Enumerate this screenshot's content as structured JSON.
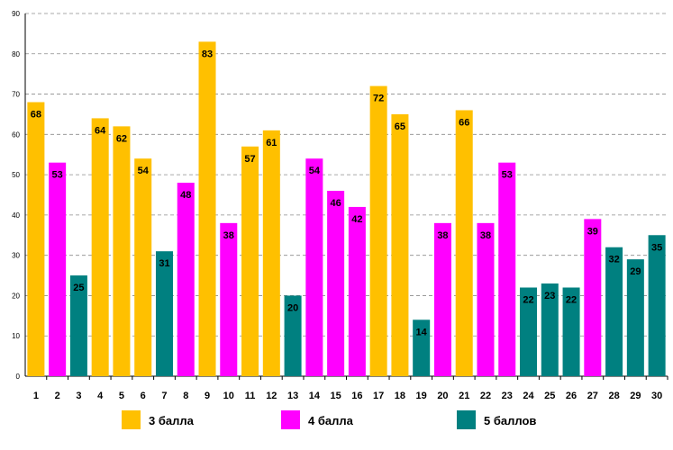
{
  "chart_data": {
    "type": "bar",
    "title": "",
    "xlabel": "",
    "ylabel": "",
    "ylim": [
      0,
      90
    ],
    "yticks": [
      0,
      10,
      20,
      30,
      40,
      50,
      60,
      70,
      80,
      90
    ],
    "grid": true,
    "legend_position": "bottom",
    "categories": [
      "1",
      "2",
      "3",
      "4",
      "5",
      "6",
      "7",
      "8",
      "9",
      "10",
      "11",
      "12",
      "13",
      "14",
      "15",
      "16",
      "17",
      "18",
      "19",
      "20",
      "21",
      "22",
      "23",
      "24",
      "25",
      "26",
      "27",
      "28",
      "29",
      "30"
    ],
    "values": [
      68,
      53,
      25,
      64,
      62,
      54,
      31,
      48,
      83,
      38,
      57,
      61,
      20,
      54,
      46,
      42,
      72,
      65,
      14,
      38,
      66,
      38,
      53,
      22,
      23,
      22,
      39,
      32,
      29,
      35
    ],
    "groups": [
      "g3",
      "g4",
      "g5",
      "g3",
      "g3",
      "g3",
      "g5",
      "g4",
      "g3",
      "g4",
      "g3",
      "g3",
      "g5",
      "g4",
      "g4",
      "g4",
      "g3",
      "g3",
      "g5",
      "g4",
      "g3",
      "g4",
      "g4",
      "g5",
      "g5",
      "g5",
      "g4",
      "g5",
      "g5",
      "g5"
    ],
    "legend": [
      {
        "id": "g3",
        "label": "3 балла",
        "color": "#FFC000"
      },
      {
        "id": "g4",
        "label": "4 балла",
        "color": "#FF00FF"
      },
      {
        "id": "g5",
        "label": "5 баллов",
        "color": "#008080"
      }
    ]
  }
}
